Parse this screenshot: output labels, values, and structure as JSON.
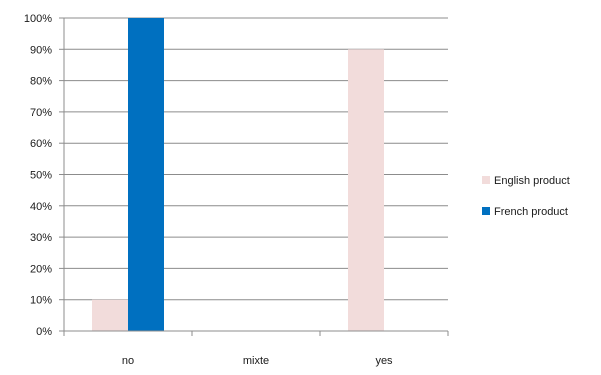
{
  "chart_data": {
    "type": "bar",
    "categories": [
      "no",
      "mixte",
      "yes"
    ],
    "series": [
      {
        "name": "English product",
        "values": [
          10,
          0,
          90
        ],
        "color": "#f2dcdb"
      },
      {
        "name": "French product",
        "values": [
          100,
          0,
          0
        ],
        "color": "#0070c0"
      }
    ],
    "y_ticks": [
      "0%",
      "10%",
      "20%",
      "30%",
      "40%",
      "50%",
      "60%",
      "70%",
      "80%",
      "90%",
      "100%"
    ],
    "ylim": [
      0,
      100
    ],
    "y_unit": "%",
    "grid": true,
    "legend_position": "right"
  }
}
